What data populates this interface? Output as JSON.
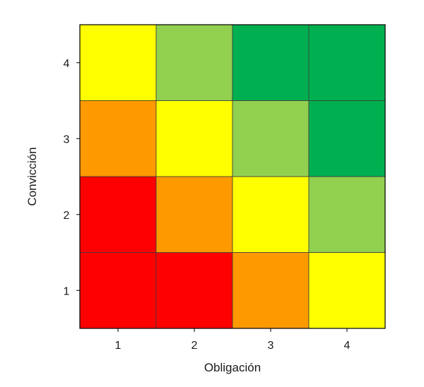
{
  "chart_data": {
    "type": "heatmap",
    "title": "",
    "xlabel": "Obligación",
    "ylabel": "Convicción",
    "x_categories": [
      "1",
      "2",
      "3",
      "4"
    ],
    "y_categories": [
      "1",
      "2",
      "3",
      "4"
    ],
    "legend": "none",
    "grid": false,
    "level_colors": {
      "red": "#ff0000",
      "orange": "#ff9900",
      "yellow": "#ffff00",
      "light-green": "#92d050",
      "green": "#00b050"
    },
    "cells": [
      {
        "x": "1",
        "y": "1",
        "color": "red"
      },
      {
        "x": "2",
        "y": "1",
        "color": "red"
      },
      {
        "x": "3",
        "y": "1",
        "color": "orange"
      },
      {
        "x": "4",
        "y": "1",
        "color": "yellow"
      },
      {
        "x": "1",
        "y": "2",
        "color": "red"
      },
      {
        "x": "2",
        "y": "2",
        "color": "orange"
      },
      {
        "x": "3",
        "y": "2",
        "color": "yellow"
      },
      {
        "x": "4",
        "y": "2",
        "color": "light-green"
      },
      {
        "x": "1",
        "y": "3",
        "color": "orange"
      },
      {
        "x": "2",
        "y": "3",
        "color": "yellow"
      },
      {
        "x": "3",
        "y": "3",
        "color": "light-green"
      },
      {
        "x": "4",
        "y": "3",
        "color": "green"
      },
      {
        "x": "1",
        "y": "4",
        "color": "yellow"
      },
      {
        "x": "2",
        "y": "4",
        "color": "light-green"
      },
      {
        "x": "3",
        "y": "4",
        "color": "green"
      },
      {
        "x": "4",
        "y": "4",
        "color": "green"
      }
    ]
  }
}
